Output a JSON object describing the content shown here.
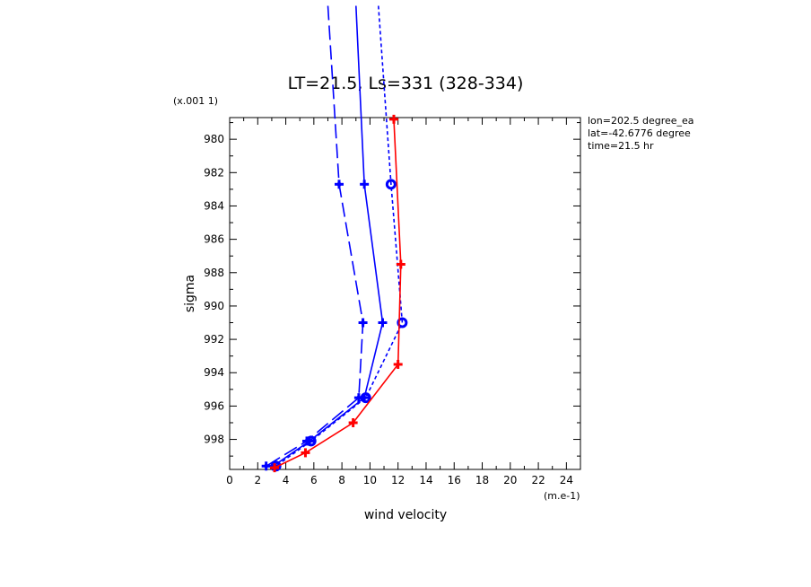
{
  "chart_data": {
    "type": "line",
    "title": "LT=21.5, Ls=331 (328-334)",
    "xlabel": "wind velocity",
    "ylabel": "sigma",
    "x_unit": "(m.e-1)",
    "y_scale_note": "(x.001 1)",
    "xlim": [
      0,
      25
    ],
    "ylim": [
      999.8,
      978.7
    ],
    "x_ticks": [
      0,
      2,
      4,
      6,
      8,
      10,
      12,
      14,
      16,
      18,
      20,
      22,
      24
    ],
    "x_tick_labels": [
      "0",
      "2",
      "4",
      "6",
      "8",
      "10",
      "12",
      "14",
      "16",
      "18",
      "20",
      "22",
      "24"
    ],
    "y_ticks": [
      980,
      982,
      984,
      986,
      988,
      990,
      992,
      994,
      996,
      998
    ],
    "y_tick_labels": [
      "980",
      "982",
      "984",
      "986",
      "988",
      "990",
      "992",
      "994",
      "996",
      "998"
    ],
    "info_lines": [
      "lon=202.5 degree_ea",
      "lat=-42.6776 degree",
      "time=21.5 hr"
    ],
    "series": [
      {
        "name": "blue-long-dash",
        "color": "#0000ff",
        "dash": "long",
        "marker": "cross",
        "x": [
          7.0,
          7.8,
          9.5,
          9.2,
          5.5,
          2.6
        ],
        "y": [
          972.0,
          982.7,
          991.0,
          995.5,
          998.1,
          999.6
        ]
      },
      {
        "name": "blue-solid",
        "color": "#0000ff",
        "dash": "none",
        "marker": "plus",
        "x": [
          9.0,
          9.6,
          10.9,
          9.6,
          5.7,
          3.1
        ],
        "y": [
          972.0,
          982.7,
          991.0,
          995.5,
          998.1,
          999.6
        ]
      },
      {
        "name": "blue-short-dash",
        "color": "#0000ff",
        "dash": "short",
        "marker": "circle",
        "x": [
          10.6,
          11.5,
          12.3,
          9.7,
          5.8,
          3.3
        ],
        "y": [
          972.0,
          982.7,
          991.0,
          995.5,
          998.1,
          999.6
        ]
      },
      {
        "name": "red-solid",
        "color": "#ff0000",
        "dash": "none",
        "marker": "plus",
        "x": [
          11.7,
          12.2,
          12.0,
          8.8,
          5.4,
          3.2
        ],
        "y": [
          978.8,
          987.5,
          993.5,
          997.0,
          998.8,
          999.7
        ]
      }
    ]
  }
}
